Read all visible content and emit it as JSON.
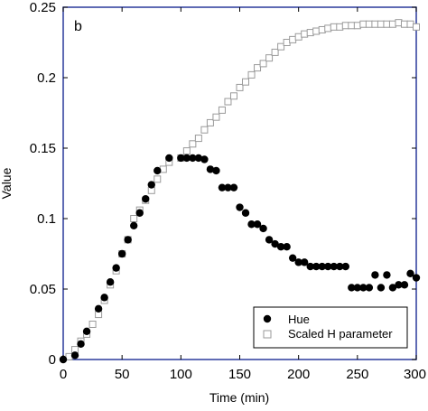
{
  "chart_data": {
    "type": "scatter",
    "panel_label": "b",
    "xlabel": "Time (min)",
    "ylabel": "Value",
    "xlim": [
      0,
      300
    ],
    "ylim": [
      0,
      0.25
    ],
    "x_ticks": [
      0,
      50,
      100,
      150,
      200,
      250,
      300
    ],
    "x_tick_labels": [
      "0",
      "50",
      "100",
      "150",
      "200",
      "250",
      "300"
    ],
    "y_ticks": [
      0,
      0.05,
      0.1,
      0.15,
      0.2,
      0.25
    ],
    "y_tick_labels": [
      "0",
      "0.05",
      "0.1",
      "0.15",
      "0.2",
      "0.25"
    ],
    "grid": false,
    "legend_position": "bottom-right",
    "frame_color": "#2a3a9c",
    "series": [
      {
        "name": "Hue",
        "marker": "filled-circle",
        "color": "#000000",
        "points": [
          [
            0,
            0.0
          ],
          [
            10,
            0.003
          ],
          [
            15,
            0.011
          ],
          [
            20,
            0.02
          ],
          [
            30,
            0.036
          ],
          [
            35,
            0.044
          ],
          [
            40,
            0.055
          ],
          [
            45,
            0.065
          ],
          [
            50,
            0.075
          ],
          [
            55,
            0.085
          ],
          [
            60,
            0.095
          ],
          [
            65,
            0.104
          ],
          [
            70,
            0.114
          ],
          [
            75,
            0.124
          ],
          [
            80,
            0.134
          ],
          [
            90,
            0.143
          ],
          [
            100,
            0.143
          ],
          [
            105,
            0.143
          ],
          [
            110,
            0.143
          ],
          [
            115,
            0.143
          ],
          [
            120,
            0.142
          ],
          [
            125,
            0.135
          ],
          [
            130,
            0.134
          ],
          [
            135,
            0.122
          ],
          [
            140,
            0.122
          ],
          [
            145,
            0.122
          ],
          [
            150,
            0.108
          ],
          [
            155,
            0.104
          ],
          [
            160,
            0.096
          ],
          [
            165,
            0.096
          ],
          [
            170,
            0.093
          ],
          [
            175,
            0.085
          ],
          [
            180,
            0.082
          ],
          [
            185,
            0.08
          ],
          [
            190,
            0.08
          ],
          [
            195,
            0.072
          ],
          [
            200,
            0.069
          ],
          [
            205,
            0.069
          ],
          [
            210,
            0.066
          ],
          [
            215,
            0.066
          ],
          [
            220,
            0.066
          ],
          [
            225,
            0.066
          ],
          [
            230,
            0.066
          ],
          [
            235,
            0.066
          ],
          [
            240,
            0.066
          ],
          [
            245,
            0.051
          ],
          [
            250,
            0.051
          ],
          [
            255,
            0.051
          ],
          [
            260,
            0.051
          ],
          [
            265,
            0.06
          ],
          [
            270,
            0.051
          ],
          [
            275,
            0.06
          ],
          [
            280,
            0.051
          ],
          [
            285,
            0.053
          ],
          [
            290,
            0.053
          ],
          [
            295,
            0.061
          ],
          [
            300,
            0.058
          ]
        ]
      },
      {
        "name": "Scaled H parameter",
        "marker": "open-square",
        "color": "#9a9a9a",
        "points": [
          [
            5,
            0.002
          ],
          [
            10,
            0.007
          ],
          [
            15,
            0.013
          ],
          [
            20,
            0.018
          ],
          [
            25,
            0.025
          ],
          [
            30,
            0.032
          ],
          [
            35,
            0.042
          ],
          [
            40,
            0.053
          ],
          [
            45,
            0.063
          ],
          [
            50,
            0.075
          ],
          [
            55,
            0.085
          ],
          [
            60,
            0.1
          ],
          [
            65,
            0.106
          ],
          [
            70,
            0.113
          ],
          [
            75,
            0.12
          ],
          [
            80,
            0.128
          ],
          [
            85,
            0.135
          ],
          [
            90,
            0.14
          ],
          [
            100,
            0.143
          ],
          [
            105,
            0.148
          ],
          [
            110,
            0.153
          ],
          [
            115,
            0.157
          ],
          [
            120,
            0.163
          ],
          [
            125,
            0.168
          ],
          [
            130,
            0.172
          ],
          [
            135,
            0.177
          ],
          [
            140,
            0.183
          ],
          [
            145,
            0.187
          ],
          [
            150,
            0.193
          ],
          [
            155,
            0.197
          ],
          [
            160,
            0.202
          ],
          [
            165,
            0.207
          ],
          [
            170,
            0.21
          ],
          [
            175,
            0.214
          ],
          [
            180,
            0.218
          ],
          [
            185,
            0.222
          ],
          [
            190,
            0.225
          ],
          [
            195,
            0.227
          ],
          [
            200,
            0.229
          ],
          [
            205,
            0.231
          ],
          [
            210,
            0.232
          ],
          [
            215,
            0.233
          ],
          [
            220,
            0.234
          ],
          [
            225,
            0.235
          ],
          [
            230,
            0.236
          ],
          [
            235,
            0.236
          ],
          [
            240,
            0.237
          ],
          [
            245,
            0.237
          ],
          [
            250,
            0.237
          ],
          [
            255,
            0.238
          ],
          [
            260,
            0.238
          ],
          [
            265,
            0.238
          ],
          [
            270,
            0.238
          ],
          [
            275,
            0.238
          ],
          [
            280,
            0.238
          ],
          [
            285,
            0.239
          ],
          [
            290,
            0.238
          ],
          [
            295,
            0.238
          ],
          [
            300,
            0.236
          ]
        ]
      }
    ]
  }
}
